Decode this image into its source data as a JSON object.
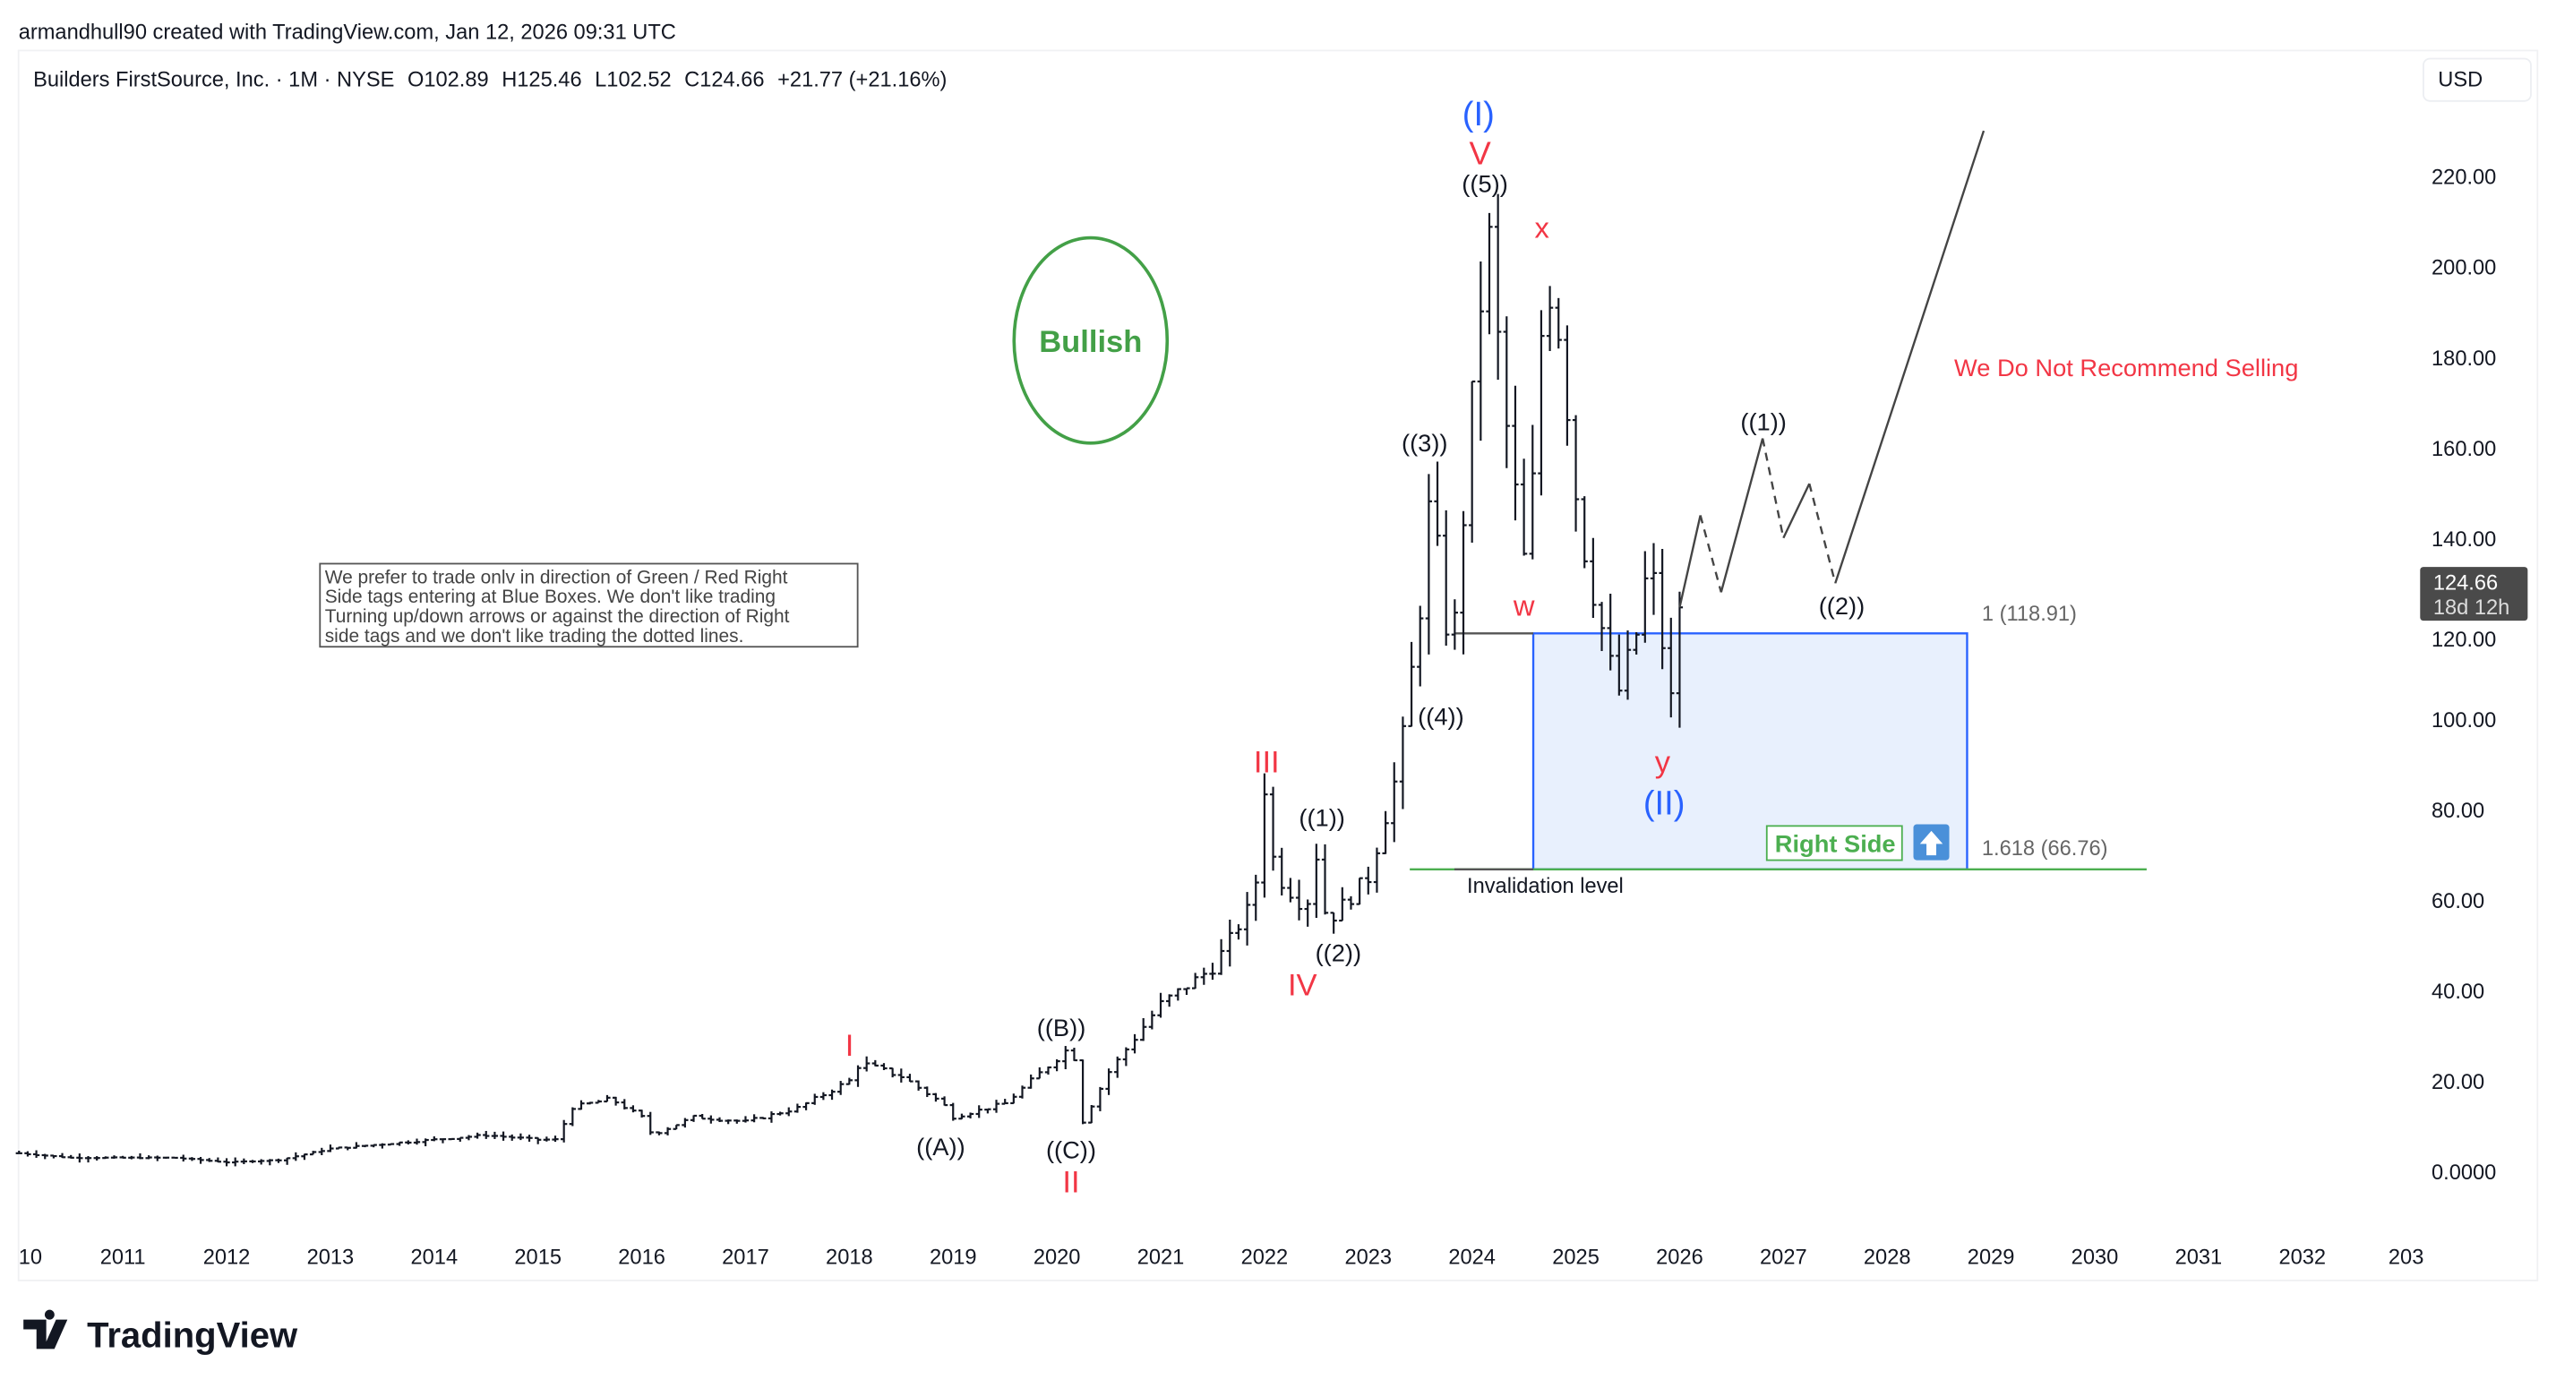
{
  "header": {
    "credit": "armandhull90 created with TradingView.com, Jan 12, 2026 09:31 UTC",
    "symbol": "Builders FirstSource, Inc. · 1M · NYSE",
    "open": "O102.89",
    "high": "H125.46",
    "low": "L102.52",
    "close": "C124.66",
    "change": "+21.77 (+21.16%)"
  },
  "currency_button": "USD",
  "price_tag": {
    "price": "124.66",
    "countdown": "18d 12h"
  },
  "note": {
    "lines": [
      "We prefer to trade onlv in direction of Green / Red Right",
      "Side tags entering at Blue Boxes. We don't like trading",
      "Turning up/down arrows or against the direction of Right",
      "side tags and we don't like trading the dotted lines."
    ]
  },
  "bullish_label": "Bullish",
  "recommendation": "We Do Not Recommend Selling",
  "waves": {
    "cycle_I": "(I)",
    "cycle_II": "(II)",
    "V": "V",
    "fifth": "((5))",
    "x": "x",
    "w": "w",
    "y": "y",
    "third": "((3))",
    "fourth": "((4))",
    "III": "III",
    "first_a": "((1))",
    "second_a": "((2))",
    "IV": "IV",
    "I": "I",
    "B": "((B))",
    "A": "((A))",
    "C": "((C))",
    "II": "II",
    "first_b": "((1))",
    "second_b": "((2))"
  },
  "fib": {
    "level_1": "1 (118.91)",
    "level_1618": "1.618 (66.76)"
  },
  "invalidation_label": "Invalidation level",
  "right_side_label": "Right Side",
  "footer_logo": "TradingView",
  "colors": {
    "red": "#f23645",
    "blue": "#2962ff",
    "green": "#4caf50",
    "box_fill": "#e8f0fd",
    "bar": "#131722"
  },
  "chart_data": {
    "type": "ohlc",
    "interval": "1M",
    "x_tick_labels": [
      "10",
      "2011",
      "2012",
      "2013",
      "2014",
      "2015",
      "2016",
      "2017",
      "2018",
      "2019",
      "2020",
      "2021",
      "2022",
      "2023",
      "2024",
      "2025",
      "2026",
      "2027",
      "2028",
      "2029",
      "2030",
      "2031",
      "2032",
      "203"
    ],
    "y_tick_labels": [
      "0.0000",
      "20.00",
      "40.00",
      "60.00",
      "80.00",
      "100.00",
      "120.00",
      "140.00",
      "160.00",
      "180.00",
      "200.00",
      "220.00"
    ],
    "ylim": [
      -5,
      230
    ],
    "price_path": [
      [
        2010.0,
        4
      ],
      [
        2010.5,
        3
      ],
      [
        2011.0,
        3
      ],
      [
        2011.5,
        3
      ],
      [
        2012.0,
        2
      ],
      [
        2012.5,
        2.5
      ],
      [
        2013.0,
        5
      ],
      [
        2013.5,
        6
      ],
      [
        2014.0,
        7
      ],
      [
        2014.5,
        8
      ],
      [
        2015.0,
        7
      ],
      [
        2015.2,
        7
      ],
      [
        2015.3,
        14
      ],
      [
        2015.7,
        16
      ],
      [
        2016.0,
        12
      ],
      [
        2016.1,
        8
      ],
      [
        2016.5,
        12
      ],
      [
        2017.0,
        11
      ],
      [
        2017.5,
        14
      ],
      [
        2018.0,
        20
      ],
      [
        2018.1,
        24
      ],
      [
        2018.5,
        21
      ],
      [
        2018.9,
        15
      ],
      [
        2019.0,
        12
      ],
      [
        2019.5,
        15
      ],
      [
        2020.0,
        25
      ],
      [
        2020.15,
        28
      ],
      [
        2020.25,
        11
      ],
      [
        2020.5,
        22
      ],
      [
        2021.0,
        37
      ],
      [
        2021.5,
        45
      ],
      [
        2021.9,
        60
      ],
      [
        2022.0,
        85
      ],
      [
        2022.1,
        66
      ],
      [
        2022.4,
        58
      ],
      [
        2022.5,
        70
      ],
      [
        2022.6,
        55
      ],
      [
        2022.8,
        60
      ],
      [
        2023.0,
        65
      ],
      [
        2023.3,
        90
      ],
      [
        2023.5,
        125
      ],
      [
        2023.6,
        150
      ],
      [
        2023.7,
        130
      ],
      [
        2023.8,
        112
      ],
      [
        2023.9,
        140
      ],
      [
        2024.0,
        170
      ],
      [
        2024.15,
        210
      ],
      [
        2024.3,
        170
      ],
      [
        2024.5,
        135
      ],
      [
        2024.6,
        155
      ],
      [
        2024.7,
        200
      ],
      [
        2024.85,
        185
      ],
      [
        2025.0,
        150
      ],
      [
        2025.1,
        135
      ],
      [
        2025.3,
        115
      ],
      [
        2025.4,
        105
      ],
      [
        2025.6,
        120
      ],
      [
        2025.7,
        135
      ],
      [
        2025.8,
        125
      ],
      [
        2025.9,
        100
      ],
      [
        2026.0,
        124.66
      ]
    ],
    "projection": [
      {
        "from": [
          2026.0,
          124.66
        ],
        "to": [
          2026.2,
          145
        ],
        "style": "solid"
      },
      {
        "from": [
          2026.2,
          145
        ],
        "to": [
          2026.4,
          128
        ],
        "style": "dashed"
      },
      {
        "from": [
          2026.4,
          128
        ],
        "to": [
          2026.8,
          162
        ],
        "style": "solid"
      },
      {
        "from": [
          2026.8,
          162
        ],
        "to": [
          2027.0,
          140
        ],
        "style": "dashed"
      },
      {
        "from": [
          2027.0,
          140
        ],
        "to": [
          2027.25,
          152
        ],
        "style": "solid"
      },
      {
        "from": [
          2027.25,
          152
        ],
        "to": [
          2027.5,
          130
        ],
        "style": "dashed"
      },
      {
        "from": [
          2027.5,
          130
        ],
        "to": [
          2028.93,
          230
        ],
        "style": "solid"
      }
    ],
    "blue_box": {
      "x_range": [
        2024.59,
        2028.77
      ],
      "y_range": [
        66.76,
        118.91
      ]
    },
    "fib_levels": [
      118.91,
      66.76
    ]
  }
}
